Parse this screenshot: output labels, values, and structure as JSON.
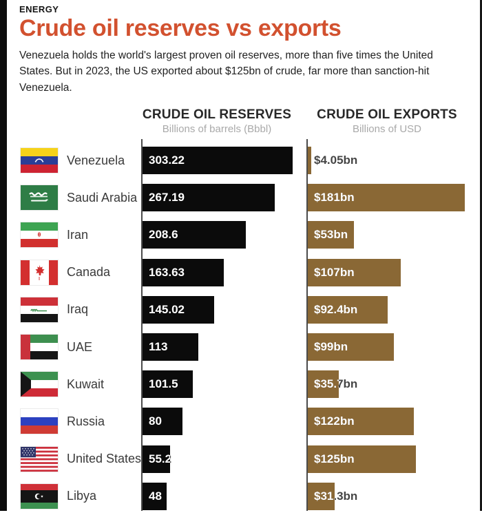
{
  "page": {
    "kicker": "ENERGY",
    "title": "Crude oil reserves vs exports",
    "description": "Venezuela holds the world's largest proven oil reserves, more than five times the United States. But in 2023, the US exported about $125bn of crude, far more than sanction-hit Venezuela."
  },
  "chart_data": {
    "type": "bar",
    "orientation": "horizontal",
    "grid": false,
    "categories": [
      "Venezuela",
      "Saudi Arabia",
      "Iran",
      "Canada",
      "Iraq",
      "UAE",
      "Kuwait",
      "Russia",
      "United States",
      "Libya"
    ],
    "flags": [
      "venezuela",
      "saudi-arabia",
      "iran",
      "canada",
      "iraq",
      "uae",
      "kuwait",
      "russia",
      "united-states",
      "libya"
    ],
    "series": [
      {
        "name": "CRUDE OIL RESERVES",
        "subtitle": "Billions of barrels (Bbbl)",
        "unit": "Bbbl",
        "color": "#0b0b0b",
        "max_value": 303.22,
        "values": [
          303.22,
          267.19,
          208.6,
          163.63,
          145.02,
          113,
          101.5,
          80,
          55.2,
          48
        ],
        "labels": [
          "303.22",
          "267.19",
          "208.6",
          "163.63",
          "145.02",
          "113",
          "101.5",
          "80",
          "55.2",
          "48"
        ]
      },
      {
        "name": "CRUDE OIL EXPORTS",
        "subtitle": "Billions of USD",
        "unit": "USD billions",
        "color": "#8a6835",
        "max_value": 181,
        "values": [
          4.05,
          181,
          53,
          107,
          92.4,
          99,
          35.7,
          122,
          125,
          31.3
        ],
        "labels": [
          "$4.05bn",
          "$181bn",
          "$53bn",
          "$107bn",
          "$92.4bn",
          "$99bn",
          "$35.7bn",
          "$122bn",
          "$125bn",
          "$31.3bn"
        ]
      }
    ]
  },
  "colors": {
    "title": "#d2512f",
    "reserves_bar": "#0b0b0b",
    "exports_bar": "#8a6835",
    "subtitle_gray": "#a9a9a9",
    "axis": "#4a4a4a"
  }
}
